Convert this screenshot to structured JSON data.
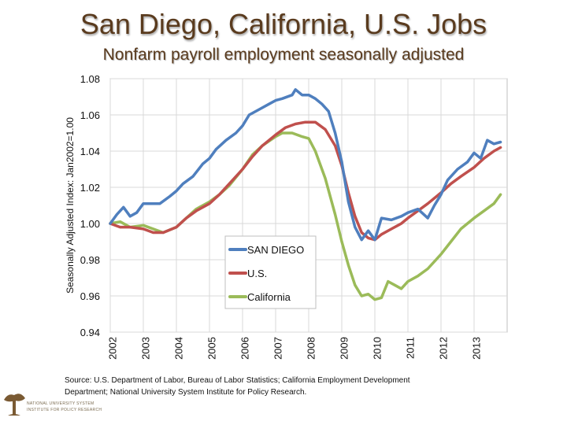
{
  "title": "San Diego, California, U.S. Jobs",
  "subtitle": "Nonfarm payroll employment seasonally adjusted",
  "source": "Source: U.S. Department of Labor, Bureau of Labor Statistics; California Employment Development Department; National University System Institute for Policy Research.",
  "logo": {
    "line1": "NATIONAL UNIVERSITY SYSTEM",
    "line2": "INSTITUTE FOR POLICY RESEARCH"
  },
  "colors": {
    "san_diego": "#4f7fbe",
    "us": "#c0504d",
    "california": "#9bbb59",
    "title": "#5a3b1e"
  },
  "chart_data": {
    "type": "line",
    "title": "San Diego, California, U.S. Jobs",
    "subtitle": "Nonfarm payroll employment seasonally adjusted",
    "xlabel": "",
    "ylabel": "Seasonally Adjusted Index: Jan2002=1.00",
    "ylim": [
      0.94,
      1.08
    ],
    "yticks": [
      0.94,
      0.96,
      0.98,
      1.0,
      1.02,
      1.04,
      1.06,
      1.08
    ],
    "ytick_labels": [
      "0.94",
      "0.96",
      "0.98",
      "1.00",
      "1.02",
      "1.04",
      "1.06",
      "1.08"
    ],
    "xlim": [
      2002,
      2014
    ],
    "xticks": [
      2002,
      2003,
      2004,
      2005,
      2006,
      2007,
      2008,
      2009,
      2010,
      2011,
      2012,
      2013
    ],
    "xtick_labels": [
      "2002",
      "2003",
      "2004",
      "2005",
      "2006",
      "2007",
      "2008",
      "2009",
      "2010",
      "2011",
      "2012",
      "2013"
    ],
    "grid": true,
    "legend_position": "center",
    "series": [
      {
        "name": "SAN DIEGO",
        "color": "#4f7fbe",
        "x": [
          2002.0,
          2002.2,
          2002.4,
          2002.6,
          2002.8,
          2003.0,
          2003.2,
          2003.5,
          2003.8,
          2004.0,
          2004.2,
          2004.5,
          2004.8,
          2005.0,
          2005.2,
          2005.5,
          2005.8,
          2006.0,
          2006.2,
          2006.5,
          2006.8,
          2007.0,
          2007.2,
          2007.5,
          2007.6,
          2007.8,
          2008.0,
          2008.2,
          2008.4,
          2008.6,
          2008.8,
          2009.0,
          2009.2,
          2009.4,
          2009.6,
          2009.8,
          2010.0,
          2010.2,
          2010.5,
          2010.8,
          2011.0,
          2011.3,
          2011.6,
          2011.8,
          2012.0,
          2012.2,
          2012.5,
          2012.8,
          2013.0,
          2013.2,
          2013.4,
          2013.6,
          2013.8
        ],
        "values": [
          1.0,
          1.005,
          1.009,
          1.004,
          1.006,
          1.011,
          1.011,
          1.011,
          1.015,
          1.018,
          1.022,
          1.026,
          1.033,
          1.036,
          1.041,
          1.046,
          1.05,
          1.054,
          1.06,
          1.063,
          1.066,
          1.068,
          1.069,
          1.071,
          1.074,
          1.071,
          1.071,
          1.069,
          1.066,
          1.062,
          1.05,
          1.034,
          1.012,
          0.998,
          0.991,
          0.996,
          0.991,
          1.003,
          1.002,
          1.004,
          1.006,
          1.008,
          1.003,
          1.01,
          1.016,
          1.024,
          1.03,
          1.034,
          1.039,
          1.036,
          1.046,
          1.044,
          1.045
        ]
      },
      {
        "name": "U.S.",
        "color": "#c0504d",
        "x": [
          2002.0,
          2002.3,
          2002.6,
          2003.0,
          2003.3,
          2003.6,
          2004.0,
          2004.3,
          2004.6,
          2005.0,
          2005.3,
          2005.6,
          2006.0,
          2006.3,
          2006.6,
          2007.0,
          2007.3,
          2007.6,
          2007.9,
          2008.2,
          2008.5,
          2008.8,
          2009.0,
          2009.2,
          2009.4,
          2009.6,
          2009.8,
          2010.0,
          2010.2,
          2010.5,
          2010.8,
          2011.0,
          2011.3,
          2011.6,
          2012.0,
          2012.3,
          2012.6,
          2013.0,
          2013.3,
          2013.6,
          2013.8
        ],
        "values": [
          1.0,
          0.998,
          0.998,
          0.997,
          0.995,
          0.995,
          0.998,
          1.003,
          1.007,
          1.011,
          1.016,
          1.022,
          1.03,
          1.037,
          1.043,
          1.049,
          1.053,
          1.055,
          1.056,
          1.056,
          1.052,
          1.043,
          1.032,
          1.017,
          1.004,
          0.995,
          0.992,
          0.991,
          0.994,
          0.997,
          1.0,
          1.003,
          1.007,
          1.011,
          1.017,
          1.022,
          1.026,
          1.031,
          1.036,
          1.04,
          1.042
        ]
      },
      {
        "name": "California",
        "color": "#9bbb59",
        "x": [
          2002.0,
          2002.3,
          2002.6,
          2003.0,
          2003.3,
          2003.6,
          2004.0,
          2004.3,
          2004.6,
          2005.0,
          2005.3,
          2005.6,
          2006.0,
          2006.3,
          2006.6,
          2007.0,
          2007.2,
          2007.5,
          2007.8,
          2008.0,
          2008.2,
          2008.5,
          2008.8,
          2009.0,
          2009.2,
          2009.4,
          2009.6,
          2009.8,
          2010.0,
          2010.2,
          2010.4,
          2010.6,
          2010.8,
          2011.0,
          2011.3,
          2011.6,
          2012.0,
          2012.3,
          2012.6,
          2013.0,
          2013.3,
          2013.6,
          2013.8
        ],
        "values": [
          1.0,
          1.001,
          0.998,
          0.999,
          0.997,
          0.995,
          0.998,
          1.003,
          1.008,
          1.012,
          1.016,
          1.021,
          1.03,
          1.038,
          1.043,
          1.048,
          1.05,
          1.05,
          1.048,
          1.047,
          1.04,
          1.025,
          1.005,
          0.99,
          0.977,
          0.966,
          0.96,
          0.961,
          0.958,
          0.959,
          0.968,
          0.966,
          0.964,
          0.968,
          0.971,
          0.975,
          0.983,
          0.99,
          0.997,
          1.003,
          1.007,
          1.011,
          1.016
        ]
      }
    ]
  }
}
